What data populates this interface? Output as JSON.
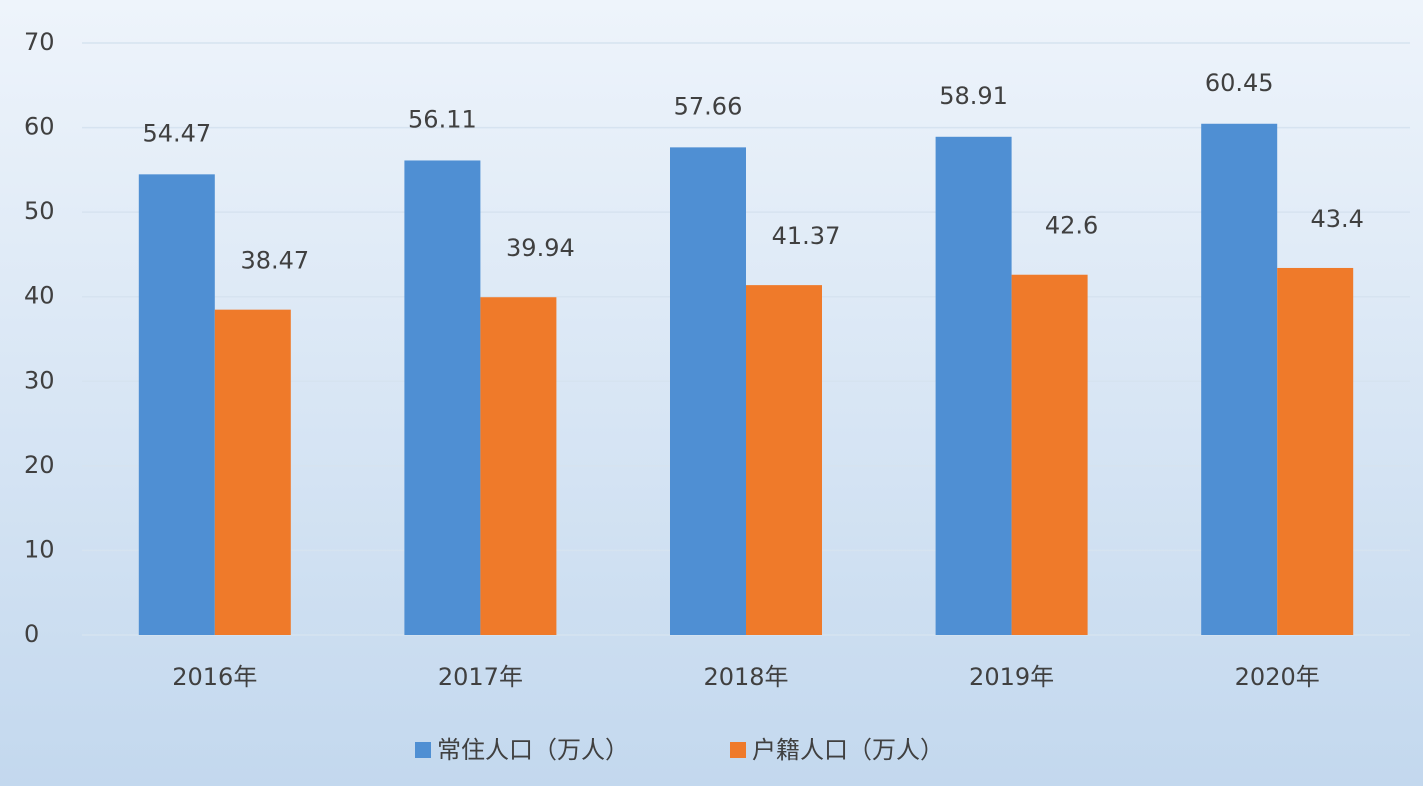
{
  "chart_data": {
    "type": "bar",
    "categories": [
      "2016年",
      "2017年",
      "2018年",
      "2019年",
      "2020年"
    ],
    "series": [
      {
        "name": "常住人口（万人）",
        "color": "#4f8fd3",
        "values": [
          54.47,
          56.11,
          57.66,
          58.91,
          60.45
        ]
      },
      {
        "name": "户籍人口（万人）",
        "color": "#ef7a2a",
        "values": [
          38.47,
          39.94,
          41.37,
          42.6,
          43.4
        ]
      }
    ],
    "ylim": [
      0,
      70
    ],
    "yticks": [
      0,
      10,
      20,
      30,
      40,
      50,
      60,
      70
    ],
    "grid": true,
    "legend": "bottom"
  }
}
